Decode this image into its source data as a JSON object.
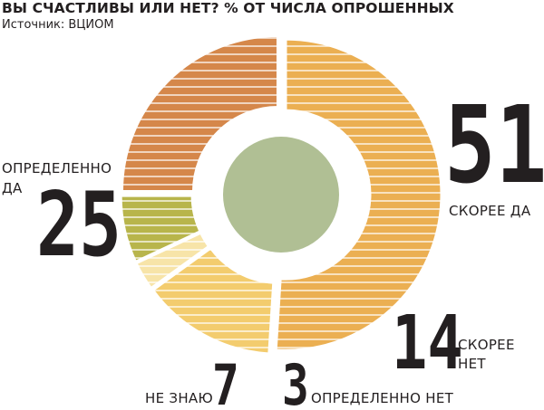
{
  "title": "ВЫ СЧАСТЛИВЫ ИЛИ НЕТ? % ОТ ЧИСЛА ОПРОШЕННЫХ",
  "source": "Источник: ВЦИОМ",
  "colors": {
    "center": "#b0bf94",
    "stripes": "#ffffff"
  },
  "chart_data": {
    "type": "pie",
    "title": "ВЫ СЧАСТЛИВЫ ИЛИ НЕТ? % ОТ ЧИСЛА ОПРОШЕННЫХ",
    "start": "top, clockwise",
    "series": [
      {
        "categories": [
          "СКОРЕЕ ДА",
          "СКОРЕЕ НЕТ",
          "ОПРЕДЕЛЕННО НЕТ",
          "НЕ ЗНАЮ",
          "ОПРЕДЕЛЕННО ДА"
        ],
        "values": [
          51,
          14,
          3,
          7,
          25
        ],
        "colors": [
          "#ebaf52",
          "#f3cc6e",
          "#f7e4a8",
          "#b8b54b",
          "#d5874a"
        ]
      }
    ],
    "data_labels": [
      "51",
      "14",
      "3",
      "7",
      "25"
    ],
    "label_lines": [
      [
        "СКОРЕЕ ДА"
      ],
      [
        "СКОРЕЕ",
        "НЕТ"
      ],
      [
        "ОПРЕДЕЛЕННО НЕТ"
      ],
      [
        "НЕ ЗНАЮ"
      ],
      [
        "ОПРЕДЕЛЕННО",
        "ДА"
      ]
    ]
  }
}
